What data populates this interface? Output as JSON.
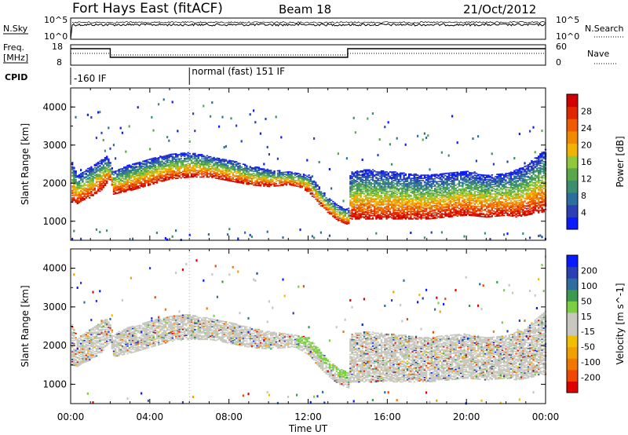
{
  "header": {
    "station": "Fort Hays East (fitACF)",
    "beam": "Beam 18",
    "date": "21/Oct/2012"
  },
  "top_panels": {
    "nsky_label": "N.Sky",
    "nsky_ticks": [
      "10^5",
      "10^0"
    ],
    "nsearch_label": "N.Search",
    "nsearch_ticks": [
      "10^5",
      "10^0"
    ],
    "freq_label": "Freq.",
    "freq_unit": "[MHz]",
    "freq_ticks": [
      "18",
      "8"
    ],
    "nave_label": "Nave",
    "nave_ticks": [
      "60",
      "0"
    ],
    "cpid_label": "CPID",
    "cpid_segments": [
      {
        "label": "-160 IF",
        "start_hour": 0
      },
      {
        "label": "normal (fast) 151 IF",
        "start_hour": 6
      }
    ]
  },
  "chart_data": [
    {
      "type": "heatmap",
      "name": "power",
      "ylabel": "Slant Range [km]",
      "ylim": [
        500,
        4500
      ],
      "yticks": [
        1000,
        2000,
        3000,
        4000
      ],
      "xlim": [
        0,
        24
      ],
      "colorbar_label": "Power [dB]",
      "colorbar_ticks": [
        "4",
        "8",
        "12",
        "16",
        "20",
        "24",
        "28"
      ],
      "colorbar_colors": [
        "#0a1bff",
        "#2c3fb4",
        "#2e6e9e",
        "#3c8f6e",
        "#5aa84a",
        "#8fc83a",
        "#f0b400",
        "#f08a00",
        "#f05a00",
        "#e02800",
        "#d00000"
      ],
      "trace_hours": [
        0,
        0.3,
        0.6,
        0.9,
        1.2,
        1.5,
        1.8,
        2.0,
        2.1,
        3.0,
        4.0,
        5.0,
        6.0,
        7.0,
        8.0,
        9.0,
        10.0,
        11.0,
        11.5,
        12.0,
        12.5,
        13.0,
        13.5,
        14.0,
        14.1,
        15.0,
        16.0,
        17.0,
        18.0,
        19.0,
        20.0,
        21.0,
        22.0,
        22.5,
        23.0,
        23.5,
        24.0
      ],
      "trace_range_low": [
        1500,
        1450,
        1550,
        1600,
        1700,
        1800,
        2000,
        2100,
        1700,
        1800,
        1950,
        2100,
        2150,
        2150,
        2050,
        1950,
        1900,
        1950,
        1900,
        1750,
        1450,
        1200,
        1000,
        900,
        1050,
        1050,
        1050,
        1050,
        1050,
        1100,
        1150,
        1100,
        1150,
        1100,
        1150,
        1200,
        1250
      ],
      "trace_range_high": [
        2600,
        2200,
        2300,
        2400,
        2500,
        2600,
        2700,
        2500,
        2300,
        2500,
        2650,
        2750,
        2800,
        2700,
        2600,
        2450,
        2350,
        2300,
        2250,
        2200,
        1900,
        1600,
        1400,
        1300,
        2300,
        2350,
        2300,
        2250,
        2200,
        2250,
        2300,
        2200,
        2250,
        2350,
        2450,
        2700,
        2900
      ]
    },
    {
      "type": "heatmap",
      "name": "velocity",
      "ylabel": "Slant Range [km]",
      "ylim": [
        500,
        4500
      ],
      "yticks": [
        1000,
        2000,
        3000,
        4000
      ],
      "xlim": [
        0,
        24
      ],
      "xticks": [
        "00:00",
        "04:00",
        "08:00",
        "12:00",
        "16:00",
        "20:00",
        "00:00"
      ],
      "xlabel": "Time UT",
      "colorbar_label": "Velocity [m s^-1]",
      "colorbar_ticks": [
        "-200",
        "-100",
        "-50",
        "-15",
        "15",
        "50",
        "100",
        "200"
      ],
      "colorbar_colors": [
        "#e00000",
        "#f04800",
        "#f07800",
        "#f0a000",
        "#f0c000",
        "#c8c8c0",
        "#c8c8c0",
        "#7ad040",
        "#3c9a50",
        "#2e6e9e",
        "#2c3fb4",
        "#0a1bff"
      ],
      "ground_scatter_color": "#c8c8c0"
    }
  ]
}
